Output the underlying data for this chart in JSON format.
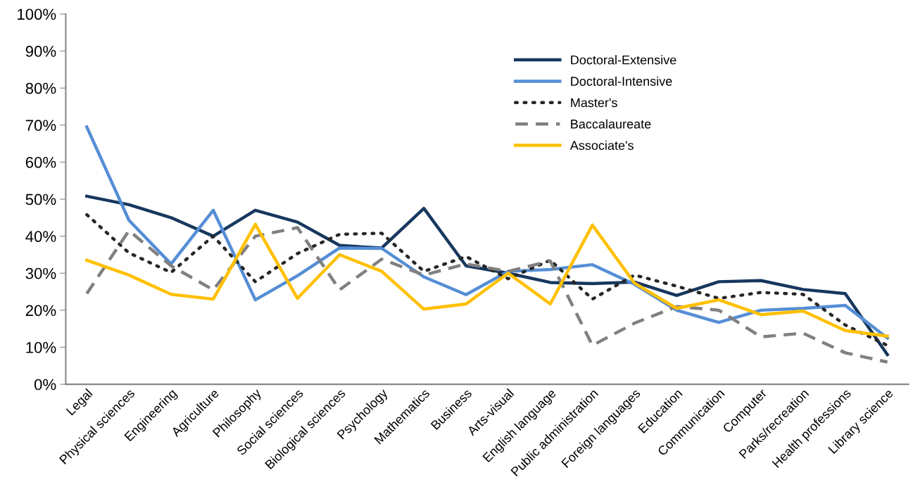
{
  "chart_data": {
    "type": "line",
    "categories": [
      "Legal",
      "Physical sciences",
      "Engineering",
      "Agriculture",
      "Philosophy",
      "Social sciences",
      "Biological sciences",
      "Psychology",
      "Mathematics",
      "Business",
      "Arts-visual",
      "English language",
      "Public administration",
      "Foreign languages",
      "Education",
      "Communication",
      "Computer",
      "Parks/recreation",
      "Health professions",
      "Library science"
    ],
    "series": [
      {
        "name": "Doctoral-Extensive",
        "color": "#17375e",
        "line_style": "solid",
        "values": [
          50.8,
          48.5,
          45,
          40,
          47,
          43.8,
          37.5,
          36.8,
          47.5,
          32,
          30,
          27.5,
          27.2,
          27.6,
          24,
          27.7,
          28,
          25.6,
          24.5,
          8
        ]
      },
      {
        "name": "Doctoral-Intensive",
        "color": "#558ed5",
        "line_style": "solid",
        "values": [
          69.5,
          44.3,
          32.5,
          47,
          22.8,
          29.3,
          36.8,
          36.7,
          29,
          24.2,
          30.5,
          31,
          32.3,
          27,
          20,
          16.7,
          20,
          20.5,
          21.3,
          12.5
        ]
      },
      {
        "name": "Master's",
        "color": "#262626",
        "line_style": "dotted",
        "values": [
          45.8,
          35.5,
          30.2,
          40,
          27.7,
          35.3,
          40.5,
          40.8,
          30.5,
          34.5,
          28.5,
          33.5,
          23,
          29.5,
          26.5,
          23.2,
          24.8,
          24.3,
          16,
          10.5
        ]
      },
      {
        "name": "Baccalaureate",
        "color": "#808080",
        "line_style": "dashed",
        "values": [
          24.5,
          41.5,
          32,
          25.5,
          40,
          42.3,
          25.5,
          33.8,
          29.5,
          32.5,
          30.5,
          33.3,
          10.5,
          16.5,
          21,
          20,
          12.8,
          13.8,
          8.5,
          6
        ]
      },
      {
        "name": "Associate's",
        "color": "#ffc000",
        "line_style": "solid",
        "values": [
          33.5,
          29.5,
          24.3,
          23,
          43.2,
          23.2,
          35,
          30.5,
          20.3,
          21.7,
          30,
          21.7,
          43,
          27.3,
          20.5,
          22.8,
          18.8,
          19.8,
          14.5,
          13
        ]
      }
    ],
    "ylim": [
      0,
      100
    ],
    "yticks": [
      {
        "value": 0,
        "label": "0%"
      },
      {
        "value": 10,
        "label": "10%"
      },
      {
        "value": 20,
        "label": "20%"
      },
      {
        "value": 30,
        "label": "30%"
      },
      {
        "value": 40,
        "label": "40%"
      },
      {
        "value": 50,
        "label": "50%"
      },
      {
        "value": 60,
        "label": "60%"
      },
      {
        "value": 70,
        "label": "70%"
      },
      {
        "value": 80,
        "label": "80%"
      },
      {
        "value": 90,
        "label": "90%"
      },
      {
        "value": 100,
        "label": "100%"
      }
    ],
    "grid": false,
    "legend": "top",
    "marker": "none"
  }
}
